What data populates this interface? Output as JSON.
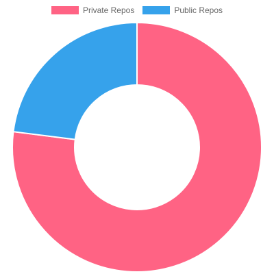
{
  "chart_data": {
    "type": "pie",
    "variant": "doughnut",
    "categories": [
      "Private Repos",
      "Public Repos"
    ],
    "values": [
      77,
      23
    ],
    "colors": [
      "#ff6384",
      "#36a2eb"
    ],
    "legend_position": "top",
    "start_angle_deg": 0,
    "direction": "clockwise",
    "border_color": "#ffffff"
  },
  "legend": {
    "items": [
      {
        "label": "Private Repos",
        "color": "#ff6384"
      },
      {
        "label": "Public Repos",
        "color": "#36a2eb"
      }
    ]
  }
}
